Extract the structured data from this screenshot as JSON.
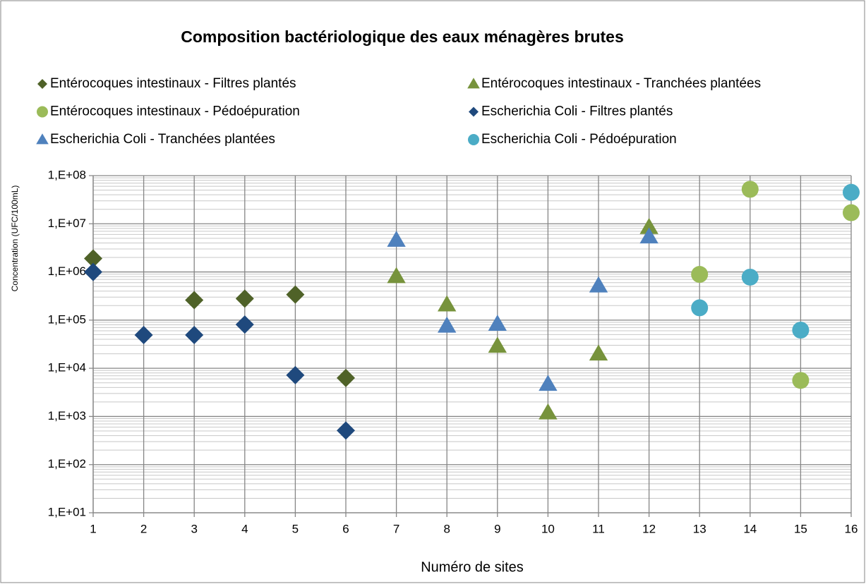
{
  "chart_data": {
    "type": "scatter",
    "title": "Composition bactériologique des eaux  ménagères brutes",
    "xlabel": "Numéro de sites",
    "ylabel": "Concentration (UFC/100mL)",
    "log_y": true,
    "grid": true,
    "legend_position": "top",
    "xlim": [
      1,
      16
    ],
    "xticks": [
      1,
      2,
      3,
      4,
      5,
      6,
      7,
      8,
      9,
      10,
      11,
      12,
      13,
      14,
      15,
      16
    ],
    "ylim": [
      10,
      100000000
    ],
    "yticks": [
      {
        "value": 10,
        "label": "1,E+01"
      },
      {
        "value": 100,
        "label": "1,E+02"
      },
      {
        "value": 1000,
        "label": "1,E+03"
      },
      {
        "value": 10000,
        "label": "1,E+04"
      },
      {
        "value": 100000,
        "label": "1,E+05"
      },
      {
        "value": 1000000,
        "label": "1,E+06"
      },
      {
        "value": 10000000,
        "label": "1,E+07"
      },
      {
        "value": 100000000,
        "label": "1,E+08"
      }
    ],
    "series": [
      {
        "name": "Entérocoques intestinaux - Filtres plantés",
        "color": "#4f6228",
        "marker": "diamond",
        "x": [
          1,
          3,
          4,
          5,
          6
        ],
        "values": [
          1900000,
          260000,
          280000,
          340000,
          6300
        ]
      },
      {
        "name": "Entérocoques intestinaux - Tranchées plantées",
        "color": "#77933c",
        "marker": "triangle",
        "x": [
          7,
          8,
          9,
          10,
          11,
          12
        ],
        "values": [
          810000,
          210000,
          29000,
          1200,
          20000,
          8500000
        ]
      },
      {
        "name": "Entérocoques intestinaux - Pédoépuration",
        "color": "#9bbb59",
        "marker": "circle",
        "x": [
          13,
          14,
          15,
          16
        ],
        "values": [
          890000,
          52000000,
          5600,
          17000000
        ]
      },
      {
        "name": "Escherichia Coli - Filtres plantés",
        "color": "#1f497d",
        "marker": "diamond",
        "x": [
          1,
          2,
          3,
          4,
          5,
          6
        ],
        "values": [
          1000000,
          49000,
          49000,
          81000,
          7200,
          510
        ]
      },
      {
        "name": "Escherichia Coli - Tranchées plantées",
        "color": "#4f81bd",
        "marker": "triangle",
        "x": [
          7,
          8,
          9,
          10,
          11,
          12
        ],
        "values": [
          4600000,
          76000,
          83000,
          4700,
          520000,
          5400000
        ]
      },
      {
        "name": "Escherichia Coli - Pédoépuration",
        "color": "#4bacc6",
        "marker": "circle",
        "x": [
          13,
          14,
          15,
          16
        ],
        "values": [
          180000,
          780000,
          62000,
          45000000
        ]
      }
    ]
  }
}
